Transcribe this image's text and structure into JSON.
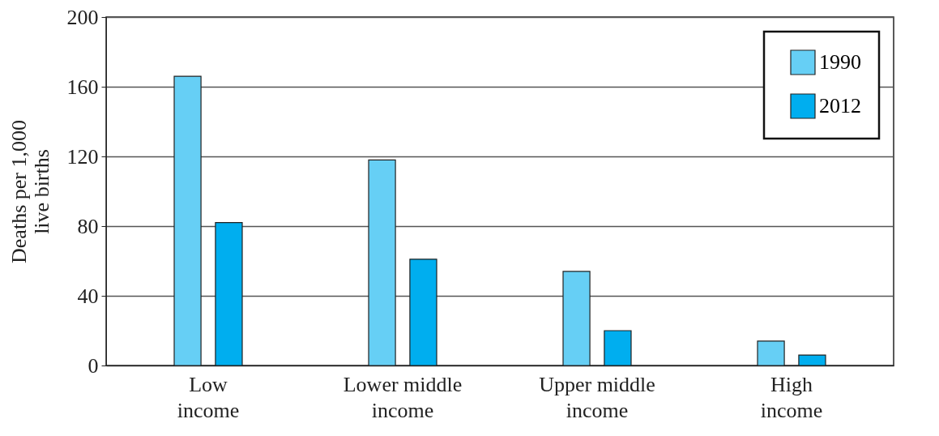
{
  "chart_data": {
    "type": "bar",
    "ylabel": "Deaths per 1,000 live births",
    "categories": [
      "Low income",
      "Lower middle income",
      "Upper middle income",
      "High income"
    ],
    "series": [
      {
        "name": "1990",
        "color": "#66cff5",
        "values": [
          166,
          118,
          54,
          14
        ]
      },
      {
        "name": "2012",
        "color": "#00aeef",
        "values": [
          82,
          61,
          20,
          6
        ]
      }
    ],
    "ylim": [
      0,
      200
    ],
    "yticks": [
      0,
      40,
      80,
      120,
      160,
      200
    ],
    "grid": "y",
    "legend": "top right"
  }
}
